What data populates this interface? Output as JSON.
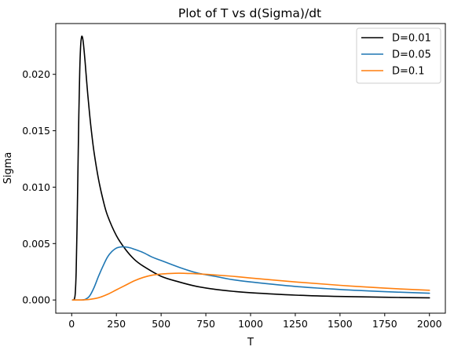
{
  "chart_data": {
    "type": "line",
    "title": "Plot of T vs d(Sigma)/dt",
    "xlabel": "T",
    "ylabel": "Sigma",
    "xlim": [
      -89,
      2089
    ],
    "ylim": [
      -0.00117,
      0.0245
    ],
    "xticks": [
      0,
      250,
      500,
      750,
      1000,
      1250,
      1500,
      1750,
      2000
    ],
    "xtick_labels": [
      "0",
      "250",
      "500",
      "750",
      "1000",
      "1250",
      "1500",
      "1750",
      "2000"
    ],
    "yticks": [
      0.0,
      0.005,
      0.01,
      0.015,
      0.02
    ],
    "ytick_labels": [
      "0.000",
      "0.005",
      "0.010",
      "0.015",
      "0.020"
    ],
    "grid": false,
    "legend_position": "top-right",
    "series": [
      {
        "name": "D=0.01",
        "color": "#000000",
        "x": [
          5,
          10,
          15,
          20,
          25,
          30,
          35,
          40,
          45,
          50,
          55,
          60,
          65,
          70,
          75,
          80,
          90,
          100,
          110,
          125,
          150,
          175,
          200,
          250,
          300,
          350,
          400,
          500,
          600,
          700,
          800,
          900,
          1000,
          1250,
          1500,
          1750,
          2000
        ],
        "y": [
          0.0,
          0.0,
          0.0001,
          0.0006,
          0.0025,
          0.0065,
          0.0115,
          0.0165,
          0.0203,
          0.0225,
          0.0233,
          0.0233,
          0.0228,
          0.022,
          0.0211,
          0.0201,
          0.0182,
          0.0165,
          0.015,
          0.0131,
          0.0107,
          0.0089,
          0.0075,
          0.0057,
          0.0045,
          0.0036,
          0.003,
          0.0021,
          0.0016,
          0.0012,
          0.00095,
          0.00077,
          0.00064,
          0.00043,
          0.00031,
          0.00024,
          0.00019
        ]
      },
      {
        "name": "D=0.05",
        "color": "#1f77b4",
        "x": [
          5,
          25,
          50,
          75,
          100,
          125,
          150,
          175,
          200,
          225,
          250,
          275,
          300,
          325,
          350,
          400,
          450,
          500,
          600,
          700,
          800,
          900,
          1000,
          1250,
          1500,
          1750,
          2000
        ],
        "y": [
          0.0,
          0.0,
          0.0,
          5e-05,
          0.00035,
          0.0011,
          0.0021,
          0.003,
          0.0038,
          0.0043,
          0.0046,
          0.0047,
          0.0047,
          0.00463,
          0.0045,
          0.0042,
          0.0038,
          0.0035,
          0.0029,
          0.0024,
          0.0021,
          0.0018,
          0.0016,
          0.0012,
          0.00093,
          0.00074,
          0.0006
        ]
      },
      {
        "name": "D=0.1",
        "color": "#ff7f0e",
        "x": [
          5,
          50,
          100,
          150,
          200,
          250,
          300,
          350,
          400,
          450,
          500,
          550,
          600,
          650,
          700,
          800,
          900,
          1000,
          1250,
          1500,
          1750,
          2000
        ],
        "y": [
          0.0,
          0.0,
          5e-05,
          0.0002,
          0.0005,
          0.0009,
          0.0013,
          0.0017,
          0.002,
          0.0022,
          0.0023,
          0.00235,
          0.00237,
          0.00235,
          0.00232,
          0.00222,
          0.0021,
          0.00195,
          0.0016,
          0.0013,
          0.00105,
          0.00086
        ]
      }
    ]
  }
}
